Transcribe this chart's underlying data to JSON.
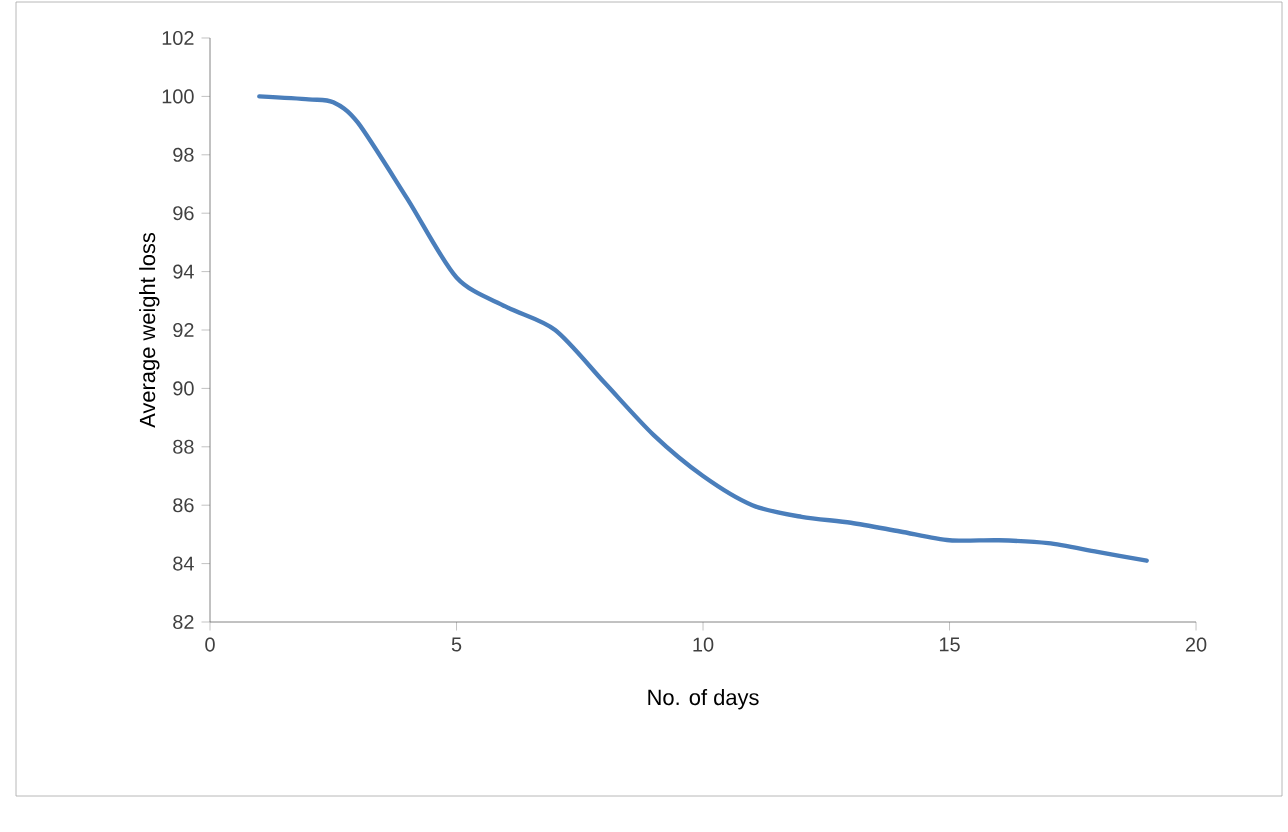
{
  "chart_data": {
    "type": "line",
    "xlabel": "No. of  days",
    "ylabel": "Average  weight  loss",
    "x": [
      1,
      2,
      2.5,
      3,
      4,
      5,
      6,
      7,
      8,
      9,
      10,
      11,
      12,
      13,
      14,
      15,
      16,
      17,
      18,
      19
    ],
    "values": [
      100,
      99.9,
      99.8,
      99.1,
      96.5,
      93.8,
      92.8,
      92,
      90.2,
      88.4,
      87,
      86,
      85.6,
      85.4,
      85.1,
      84.8,
      84.8,
      84.7,
      84.4,
      84.1
    ],
    "color": "#4a7ebb",
    "marker": "none",
    "xlim": [
      0,
      20
    ],
    "ylim": [
      82,
      102
    ],
    "xticks": [
      0,
      5,
      10,
      15,
      20
    ],
    "yticks": [
      82,
      84,
      86,
      88,
      90,
      92,
      94,
      96,
      98,
      100,
      102
    ]
  }
}
